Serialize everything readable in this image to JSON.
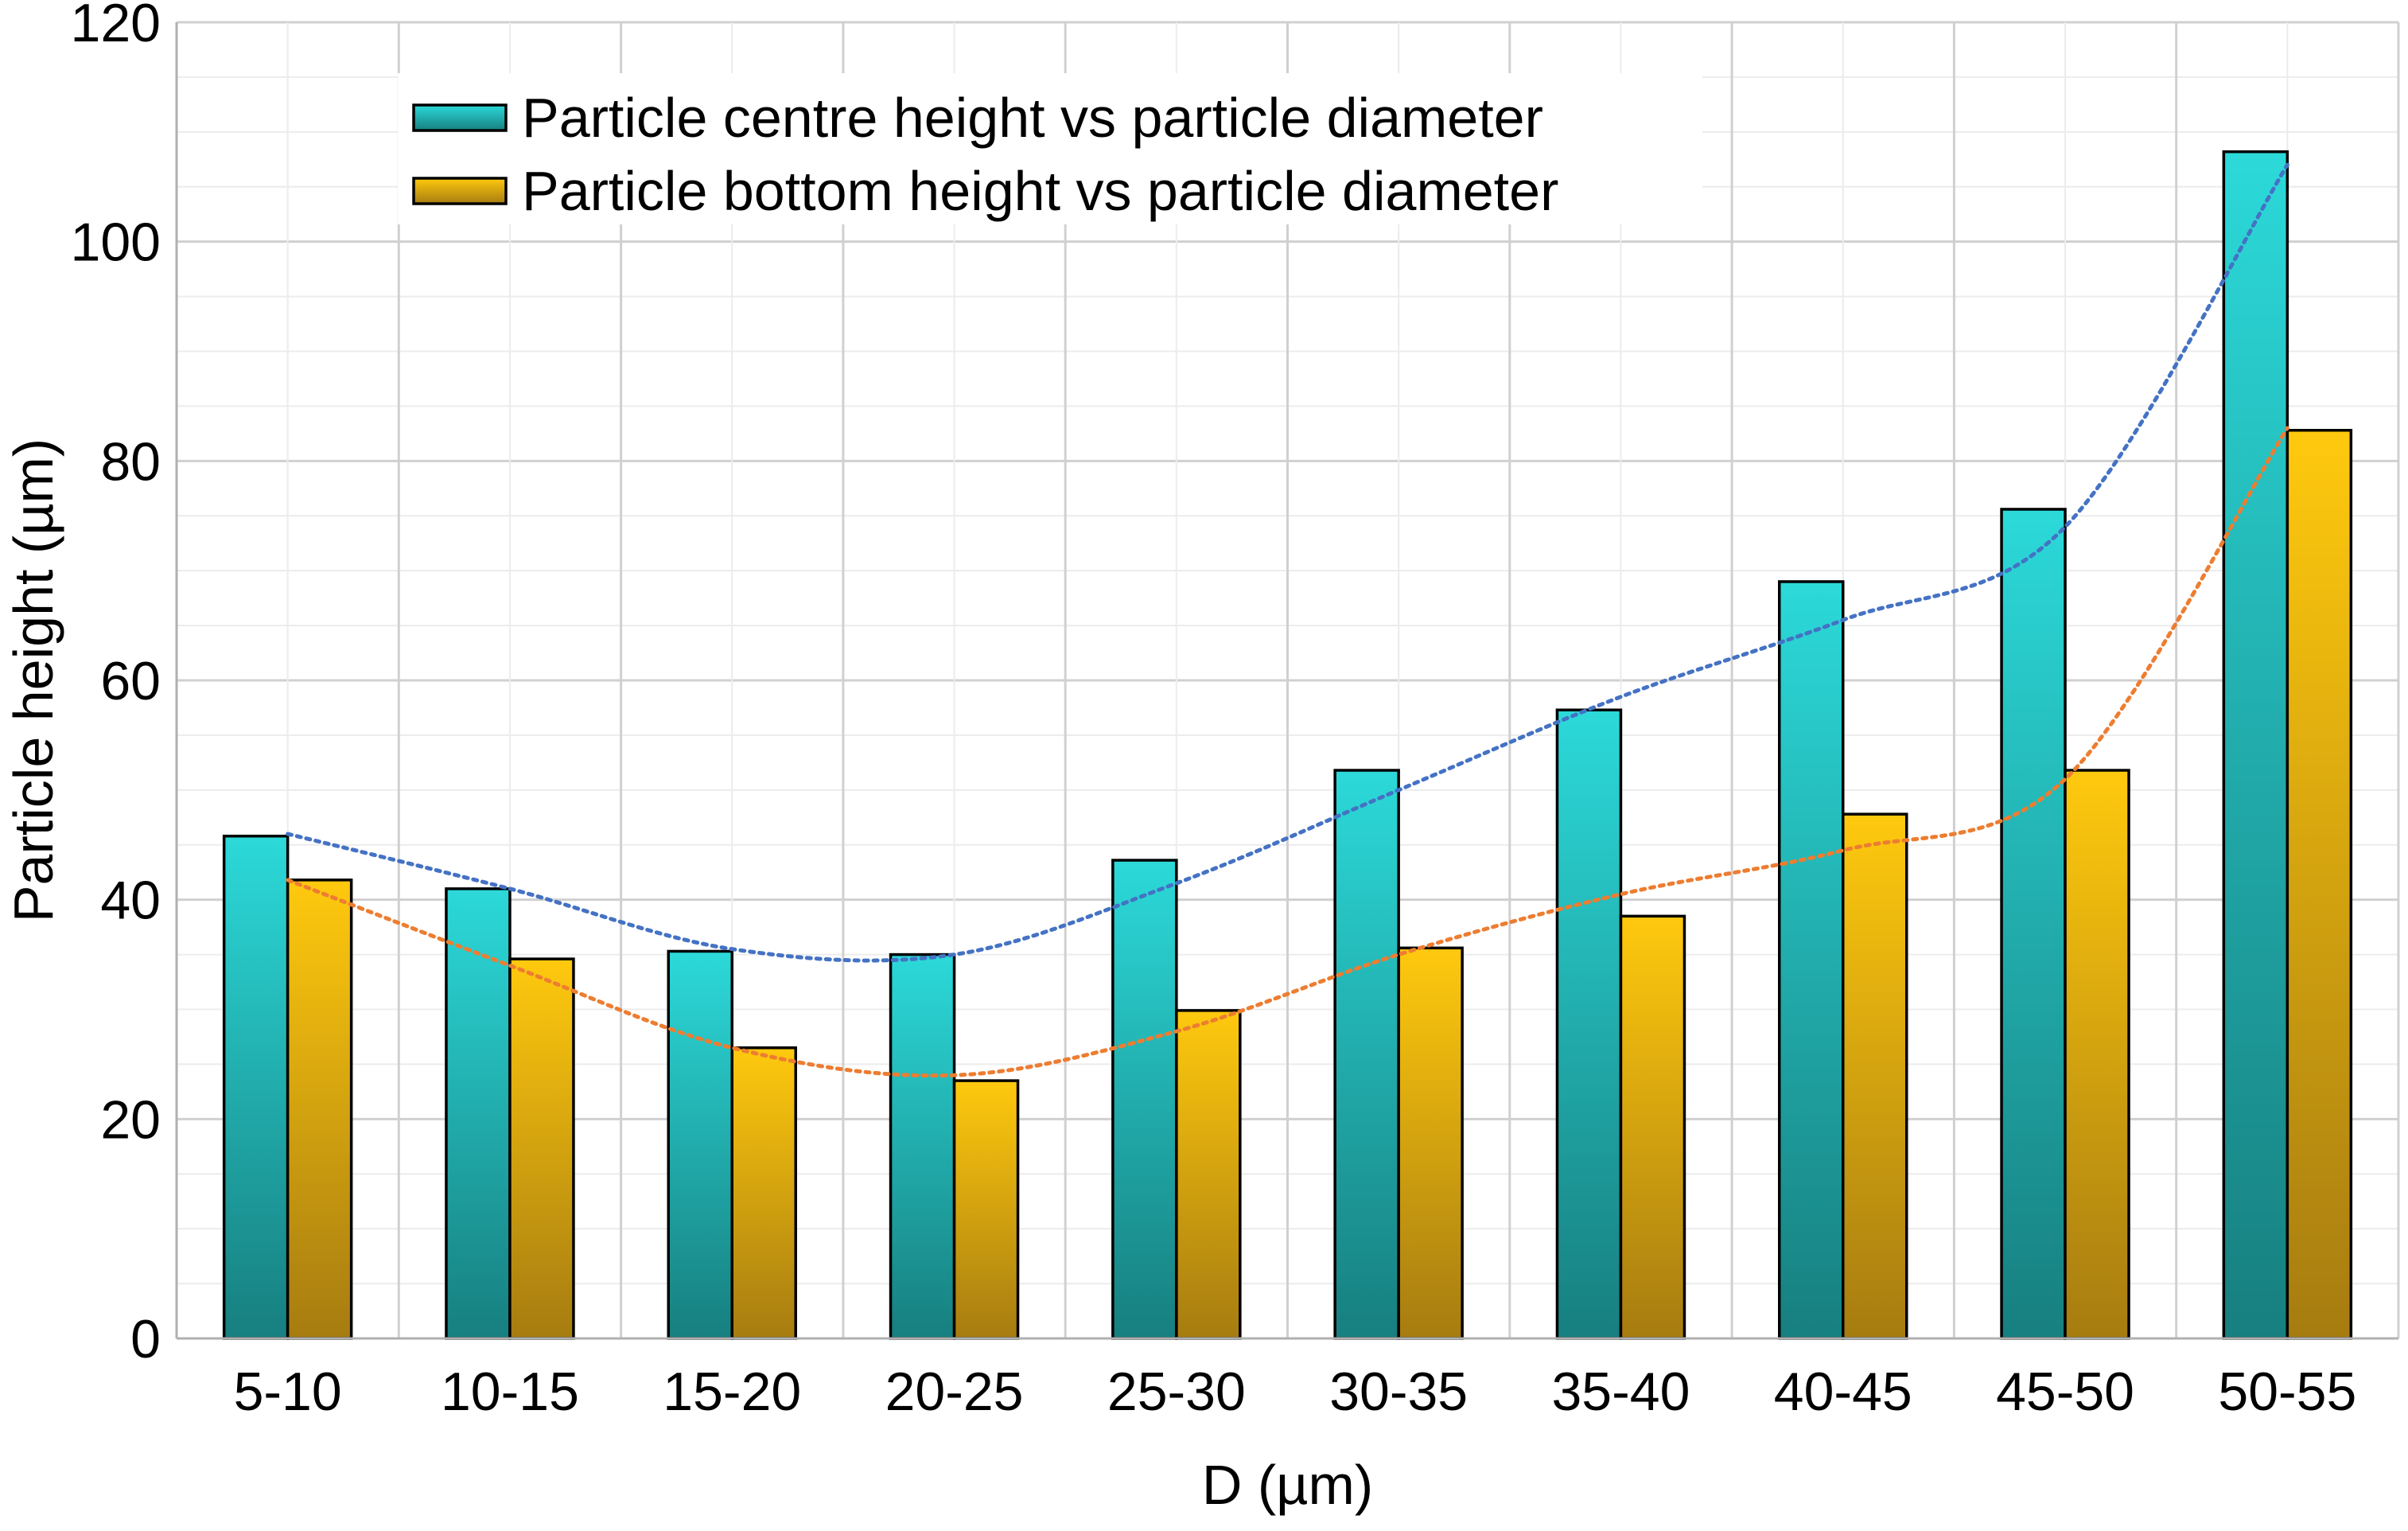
{
  "chart_data": {
    "type": "bar",
    "title": "",
    "xlabel": "D (µm)",
    "ylabel": "Particle height (µm)",
    "ylim": [
      0,
      120
    ],
    "yticks": [
      0,
      20,
      40,
      60,
      80,
      100,
      120
    ],
    "grid": true,
    "legend_position": "top-left",
    "categories": [
      "5-10",
      "10-15",
      "15-20",
      "20-25",
      "25-30",
      "30-35",
      "35-40",
      "40-45",
      "45-50",
      "50-55"
    ],
    "series": [
      {
        "name": "Particle centre height vs particle diameter",
        "values": [
          45.8,
          41,
          35.3,
          35,
          43.6,
          51.8,
          57.3,
          69,
          75.6,
          108.2
        ],
        "color_top": "#2cd9d9",
        "color_bottom": "#177f7f",
        "trend_color": "#4472c4",
        "trend": [
          46,
          41,
          35.5,
          35,
          41.5,
          50,
          58.5,
          65.5,
          74,
          107
        ]
      },
      {
        "name": "Particle bottom height vs particle diameter",
        "values": [
          41.8,
          34.6,
          26.5,
          23.5,
          29.9,
          35.6,
          38.5,
          47.8,
          51.8,
          82.8
        ],
        "color_top": "#ffc90e",
        "color_bottom": "#a67c10",
        "trend_color": "#ed7d31",
        "trend": [
          41.8,
          34,
          26.5,
          24,
          28,
          35,
          40.5,
          44.5,
          51,
          83
        ]
      }
    ]
  }
}
